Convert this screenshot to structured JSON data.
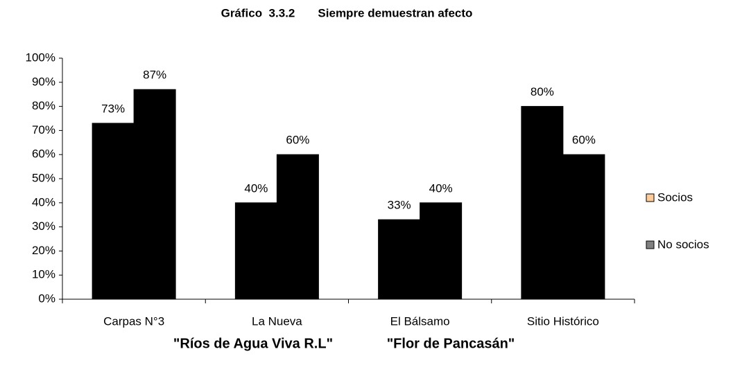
{
  "chart_data": {
    "type": "bar",
    "title": "Gráfico  3.3.2       Siempre demuestran afecto",
    "categories": [
      "Carpas N°3",
      "La Nueva",
      "El Bálsamo",
      "Sitio Histórico"
    ],
    "series": [
      {
        "name": "Socios",
        "color": "#FFCC99",
        "values": [
          73,
          40,
          33,
          80
        ],
        "value_labels": [
          "73%",
          "40%",
          "33%",
          "80%"
        ]
      },
      {
        "name": "No socios",
        "color": "#808080",
        "values": [
          87,
          60,
          40,
          60
        ],
        "value_labels": [
          "87%",
          "60%",
          "40%",
          "60%"
        ]
      }
    ],
    "ylim": [
      0,
      100
    ],
    "yticks": [
      {
        "value": 0,
        "label": "0%"
      },
      {
        "value": 10,
        "label": "10%"
      },
      {
        "value": 20,
        "label": "20%"
      },
      {
        "value": 30,
        "label": "30%"
      },
      {
        "value": 40,
        "label": "40%"
      },
      {
        "value": 50,
        "label": "50%"
      },
      {
        "value": 60,
        "label": "60%"
      },
      {
        "value": 70,
        "label": "70%"
      },
      {
        "value": 80,
        "label": "80%"
      },
      {
        "value": 90,
        "label": "90%"
      },
      {
        "value": 100,
        "label": "100%"
      }
    ],
    "legend": "right",
    "annotations": [
      "\"Ríos de Agua Viva R.L\"",
      "\"Flor de Pancasán\""
    ]
  }
}
